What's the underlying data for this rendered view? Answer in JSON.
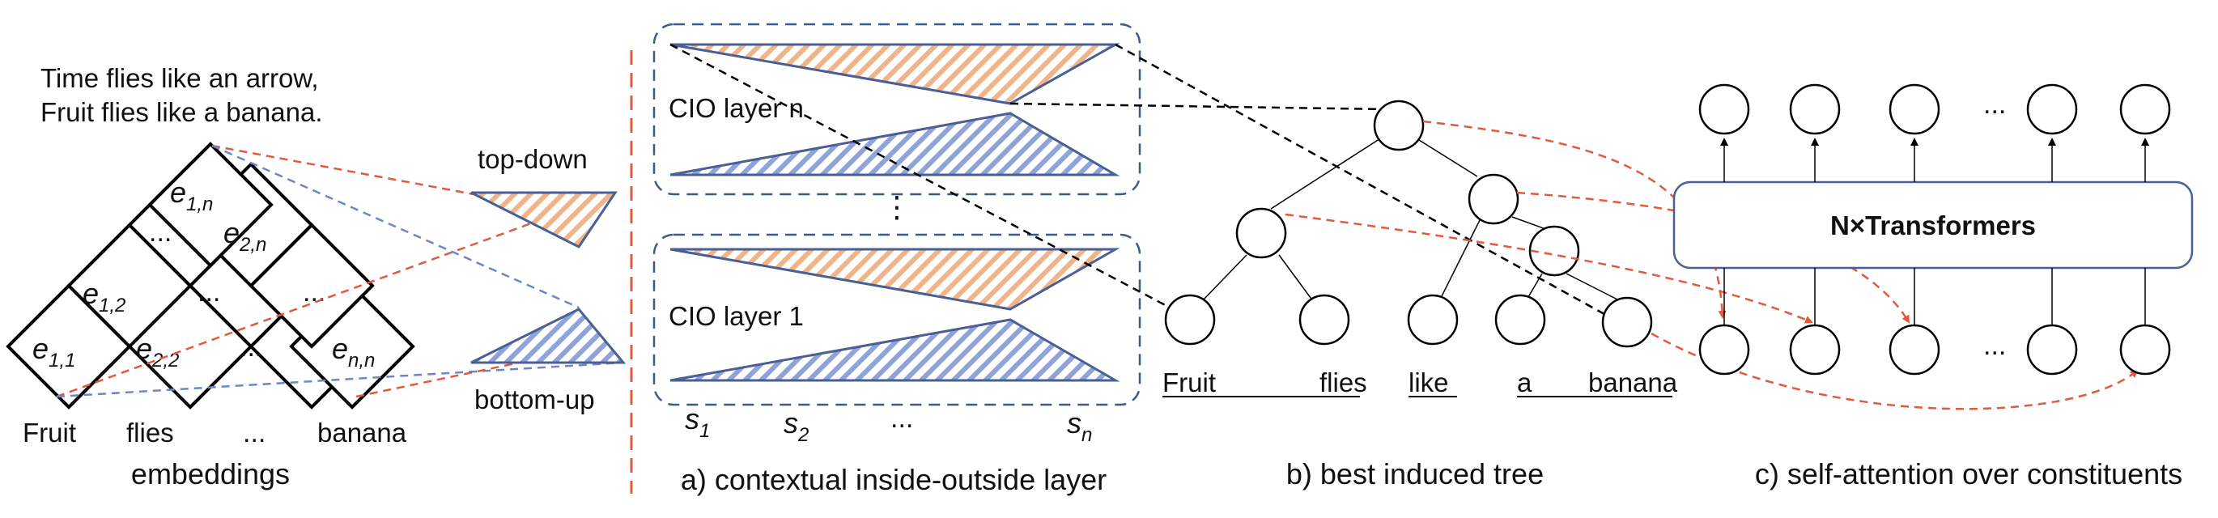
{
  "left": {
    "sentence_line1": "Time flies like an arrow,",
    "sentence_line2": "Fruit flies like a banana.",
    "cells": {
      "e11": {
        "base": "e",
        "sub": "1,1"
      },
      "e22": {
        "base": "e",
        "sub": "2,2"
      },
      "enn": {
        "base": "e",
        "sub": "n,n"
      },
      "e12": {
        "base": "e",
        "sub": "1,2"
      },
      "e2n": {
        "base": "e",
        "sub": "2,n"
      },
      "e1n": {
        "base": "e",
        "sub": "1,n"
      }
    },
    "ellipsis": "...",
    "words": [
      "Fruit",
      "flies",
      "...",
      "banana"
    ],
    "caption": "embeddings",
    "top_down_label": "top-down",
    "bottom_up_label": "bottom-up"
  },
  "middle": {
    "layer_n_label": "CIO layer n",
    "layer_1_label": "CIO layer 1",
    "vertical_ellipsis": "⋮",
    "span_labels": [
      {
        "base": "s",
        "sub": "1"
      },
      {
        "base": "s",
        "sub": "2"
      },
      {
        "base": "...",
        "sub": ""
      },
      {
        "base": "s",
        "sub": "n"
      }
    ],
    "caption": "a) contextual inside-outside layer"
  },
  "tree": {
    "words": [
      "Fruit",
      "flies",
      "like",
      "a",
      "banana"
    ],
    "caption": "b) best induced tree"
  },
  "attention": {
    "transformer_label": "N×Transformers",
    "ellipsis": "...",
    "caption": "c) self-attention over constituents"
  },
  "colors": {
    "red_dash": "#e05a3e",
    "blue_dash": "#6e86c8",
    "hatch_orange": "#f0b488",
    "hatch_blue": "#8fa3d9",
    "box_border": "#3d5a8a"
  }
}
